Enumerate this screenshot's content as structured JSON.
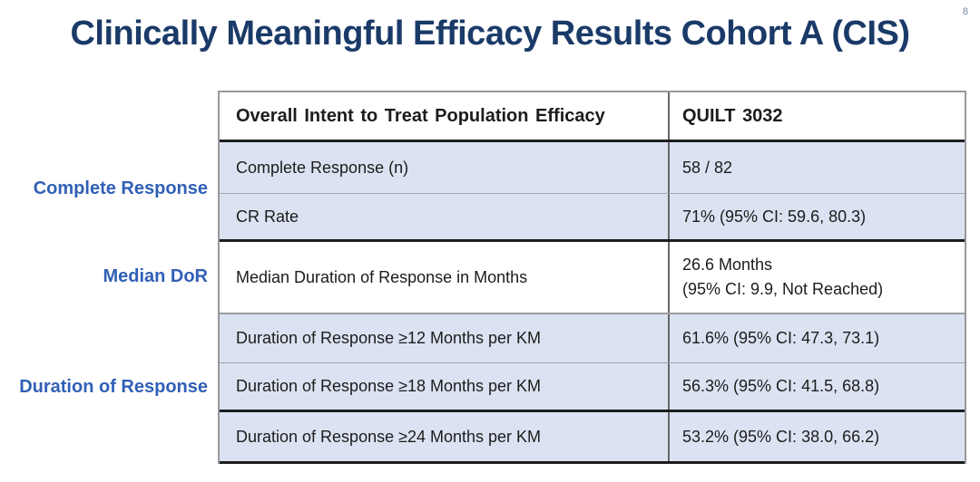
{
  "slide": {
    "title": "Clinically Meaningful Efficacy Results Cohort A (CIS)",
    "page_number": "8"
  },
  "group_labels": [
    {
      "label": "Complete Response"
    },
    {
      "label": "Median DoR"
    },
    {
      "label": "Duration of Response"
    }
  ],
  "table": {
    "header": {
      "metric": "Overall Intent to Treat Population Efficacy",
      "study": "QUILT 3032"
    },
    "rows": [
      {
        "metric": "Complete Response (n)",
        "value": "58 / 82"
      },
      {
        "metric": "CR Rate",
        "value": "71% (95% CI: 59.6, 80.3)"
      },
      {
        "metric": "Median Duration of Response in Months",
        "value": "26.6 Months",
        "value_line2": "(95% CI: 9.9, Not Reached)"
      },
      {
        "metric": "Duration of Response ≥12 Months per KM",
        "value": "61.6% (95% CI: 47.3, 73.1)"
      },
      {
        "metric": "Duration of Response ≥18 Months per KM",
        "value": "56.3% (95% CI: 41.5, 68.8)"
      },
      {
        "metric": "Duration of Response ≥24 Months per KM",
        "value": "53.2% (95% CI: 38.0, 66.2)"
      }
    ]
  },
  "colors": {
    "title_text": "#1a3a68",
    "group_label_text": "#3160b6",
    "row_shade": "#dbe3f2",
    "thick_border": "#1c1c1c",
    "thin_border": "#a6a6aa",
    "outer_border": "#98989c",
    "body_text": "#1c1c1c",
    "page_number_text": "#7388a3"
  }
}
